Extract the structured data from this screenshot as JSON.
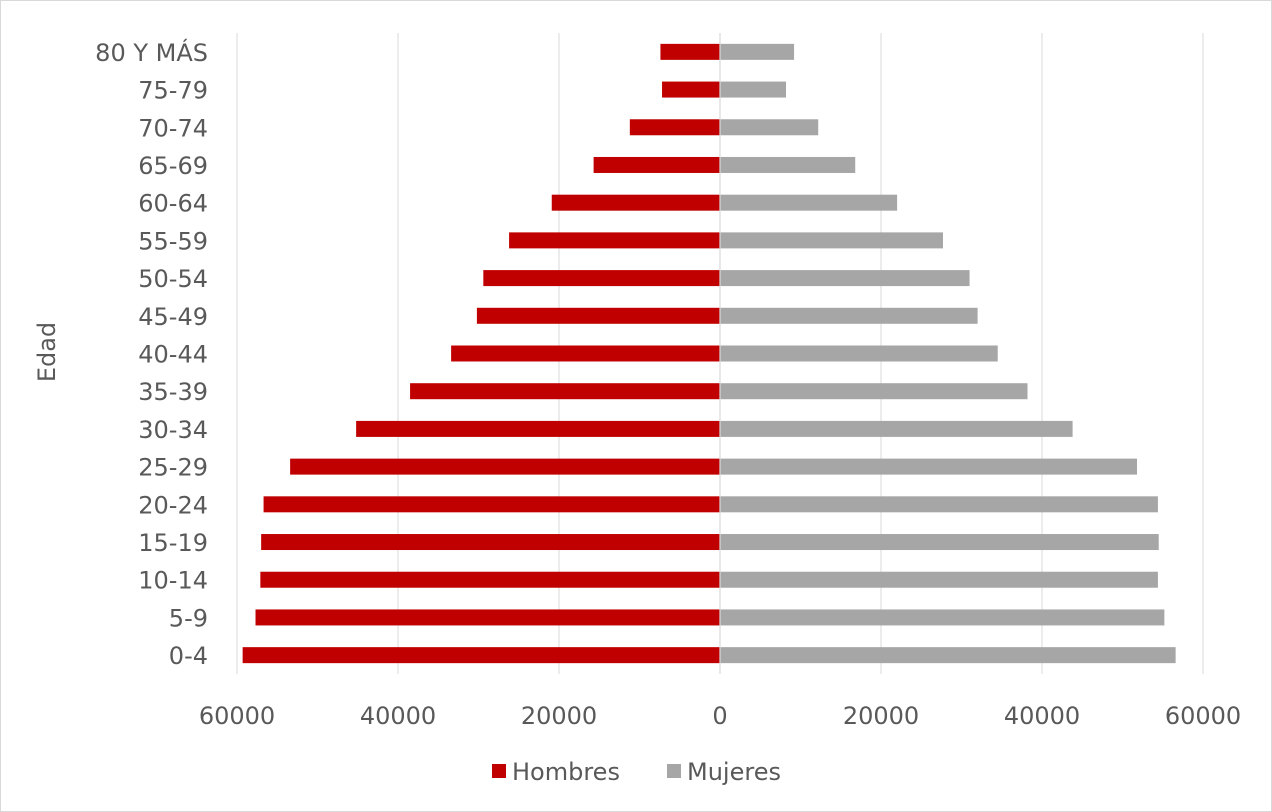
{
  "chart_data": {
    "type": "bar",
    "orientation": "horizontal",
    "title": "",
    "ylabel": "Edad",
    "xlabel": "",
    "categories": [
      "0-4",
      "5-9",
      "10-14",
      "15-19",
      "20-24",
      "25-29",
      "30-34",
      "35-39",
      "40-44",
      "45-49",
      "50-54",
      "55-59",
      "60-64",
      "65-69",
      "70-74",
      "75-79",
      "80 Y MÁS"
    ],
    "series": [
      {
        "name": "Hombres",
        "color": "#c00000",
        "values": [
          59300,
          57700,
          57100,
          57000,
          56700,
          53400,
          45200,
          38500,
          33400,
          30200,
          29400,
          26200,
          20900,
          15700,
          11200,
          7200,
          7400
        ]
      },
      {
        "name": "Mujeres",
        "color": "#a6a6a6",
        "values": [
          56600,
          55200,
          54400,
          54500,
          54400,
          51800,
          43800,
          38200,
          34500,
          32000,
          31000,
          27700,
          22000,
          16800,
          12200,
          8200,
          9200
        ]
      }
    ],
    "xlim": [
      -60000,
      60000
    ],
    "xticks": [
      -60000,
      -40000,
      -20000,
      0,
      20000,
      40000,
      60000
    ],
    "xtick_labels": [
      "60000",
      "40000",
      "20000",
      "0",
      "20000",
      "40000",
      "60000"
    ],
    "grid": "vertical",
    "legend": "bottom"
  }
}
